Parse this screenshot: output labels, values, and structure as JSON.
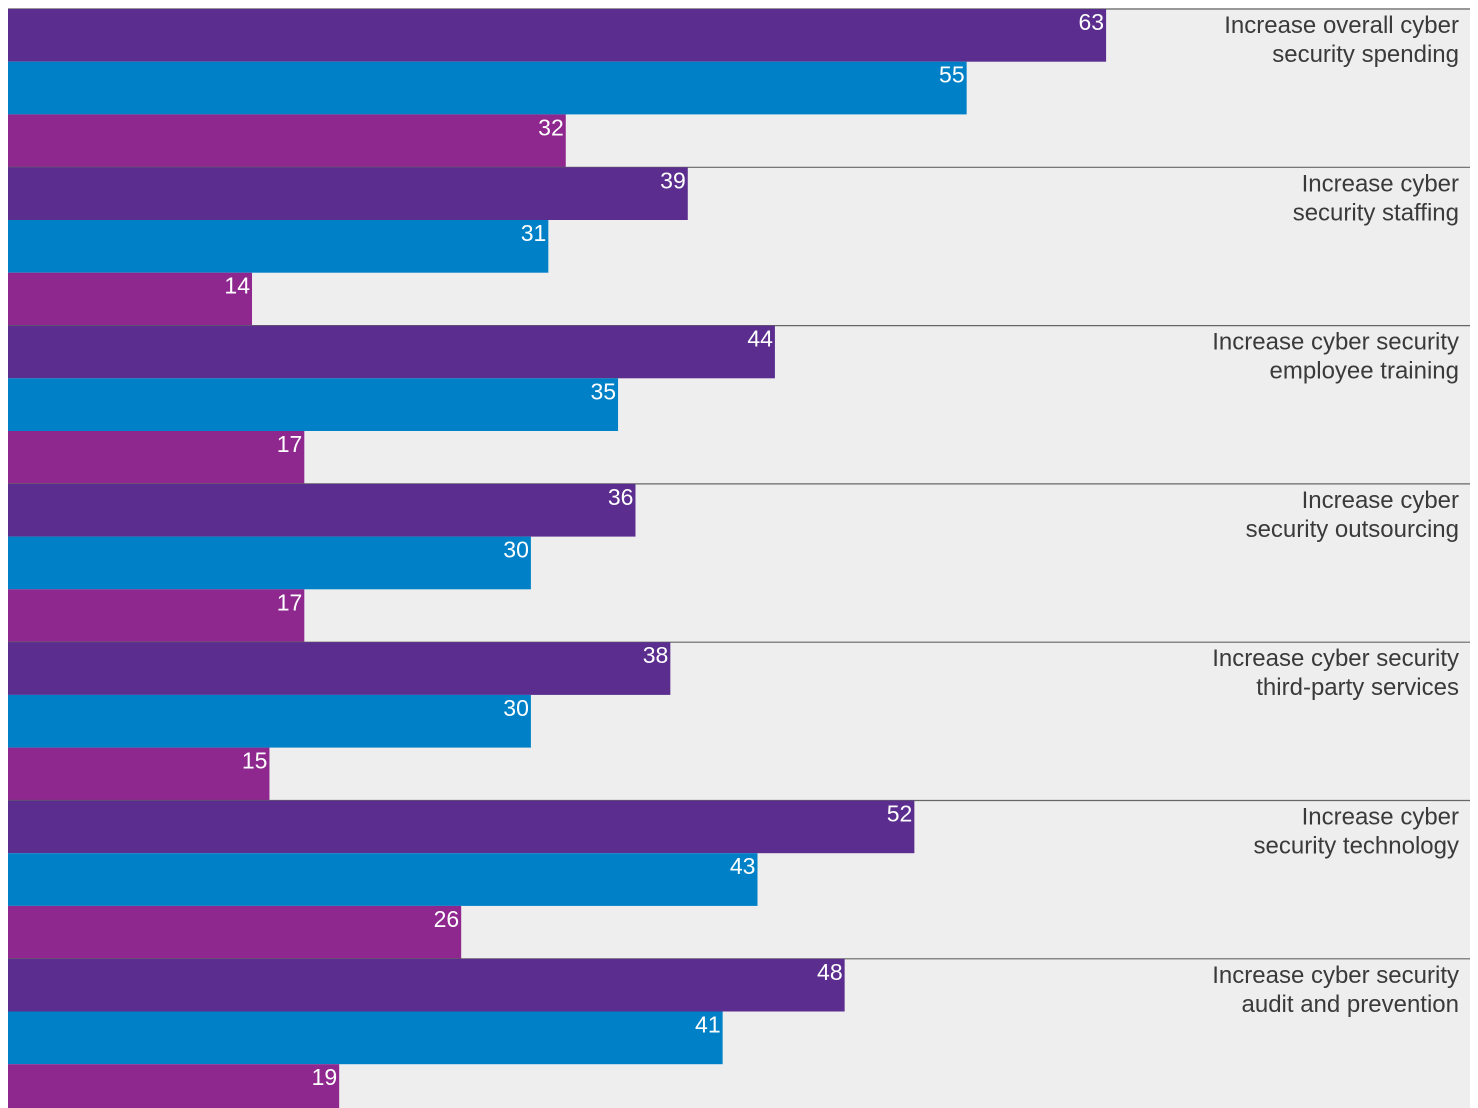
{
  "chart_data": {
    "type": "bar",
    "orientation": "horizontal",
    "grouped": true,
    "categories": [
      [
        "Increase overall cyber",
        "security spending"
      ],
      [
        "Increase cyber",
        "security staffing"
      ],
      [
        "Increase cyber security",
        "employee training"
      ],
      [
        "Increase cyber",
        "security outsourcing"
      ],
      [
        "Increase cyber security",
        "third-party services"
      ],
      [
        "Increase cyber",
        "security technology"
      ],
      [
        "Increase cyber security",
        "audit and prevention"
      ]
    ],
    "series": [
      {
        "values": [
          63,
          39,
          44,
          36,
          38,
          52,
          48
        ]
      },
      {
        "values": [
          55,
          31,
          35,
          30,
          30,
          43,
          41
        ]
      },
      {
        "values": [
          32,
          14,
          17,
          17,
          15,
          26,
          19
        ]
      }
    ],
    "grid": false,
    "legend": "none",
    "colors": {
      "background": "#eeeeee",
      "separator": "#666666",
      "label_text": "#3a3a3a",
      "value_text": "#ffffff",
      "series": [
        "#5b2d8f",
        "#0080c6",
        "#8e278e"
      ]
    }
  }
}
